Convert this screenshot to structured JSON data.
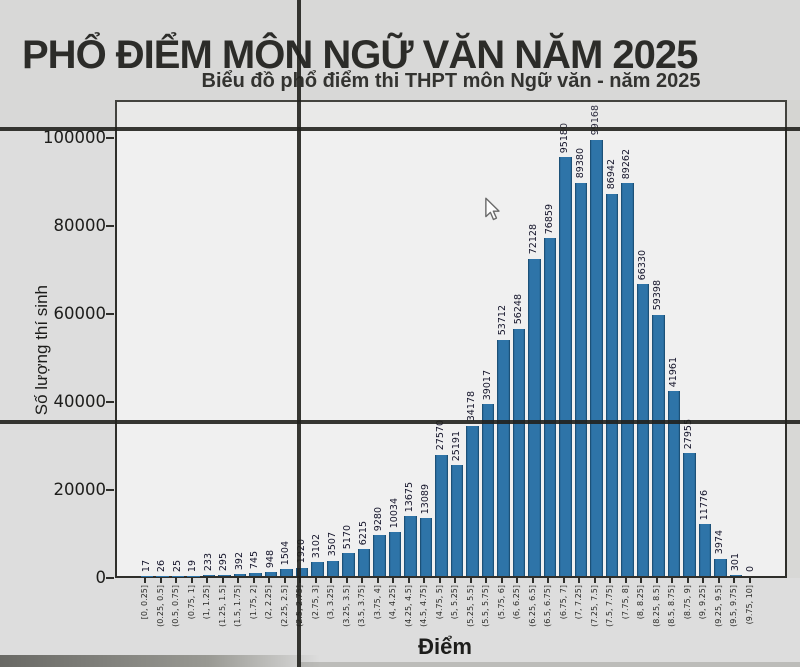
{
  "header": {
    "title": "PHỔ ĐIỂM MÔN NGỮ VĂN NĂM 2025"
  },
  "icons": {
    "cursor": "arrow-pointer-icon"
  },
  "chart_data": {
    "type": "bar",
    "title": "Biểu đồ phổ điểm thi THPT môn Ngữ văn - năm 2025",
    "xlabel": "Điểm",
    "ylabel": "Số lượng thí sinh",
    "ylim": [
      0,
      100000
    ],
    "yticks": [
      0,
      20000,
      40000,
      60000,
      80000,
      100000
    ],
    "grid": false,
    "legend": "none",
    "bar_color": "#2e74a8",
    "categories": [
      "[0, 0.25]",
      "(0.25, 0.5]",
      "(0.5, 0.75]",
      "(0.75, 1]",
      "(1, 1.25]",
      "(1.25, 1.5]",
      "(1.5, 1.75]",
      "(1.75, 2]",
      "(2, 2.25]",
      "(2.25, 2.5]",
      "(2.5, 2.75]",
      "(2.75, 3]",
      "(3, 3.25]",
      "(3.25, 3.5]",
      "(3.5, 3.75]",
      "(3.75, 4]",
      "(4, 4.25]",
      "(4.25, 4.5]",
      "(4.5, 4.75]",
      "(4.75, 5]",
      "(5, 5.25]",
      "(5.25, 5.5]",
      "(5.5, 5.75]",
      "(5.75, 6]",
      "(6, 6.25]",
      "(6.25, 6.5]",
      "(6.5, 6.75]",
      "(6.75, 7]",
      "(7, 7.25]",
      "(7.25, 7.5]",
      "(7.5, 7.75]",
      "(7.75, 8]",
      "(8, 8.25]",
      "(8.25, 8.5]",
      "(8.5, 8.75]",
      "(8.75, 9]",
      "(9, 9.25]",
      "(9.25, 9.5]",
      "(9.5, 9.75]",
      "(9.75, 10]"
    ],
    "values": [
      17,
      26,
      25,
      19,
      233,
      295,
      392,
      745,
      948,
      1504,
      1920,
      3102,
      3507,
      5170,
      6215,
      9280,
      10034,
      13675,
      13089,
      27570,
      25191,
      34178,
      39017,
      53712,
      56248,
      72128,
      76859,
      95180,
      89380,
      99168,
      86942,
      89262,
      66330,
      59398,
      41961,
      27955,
      11776,
      3974,
      301,
      0
    ]
  }
}
